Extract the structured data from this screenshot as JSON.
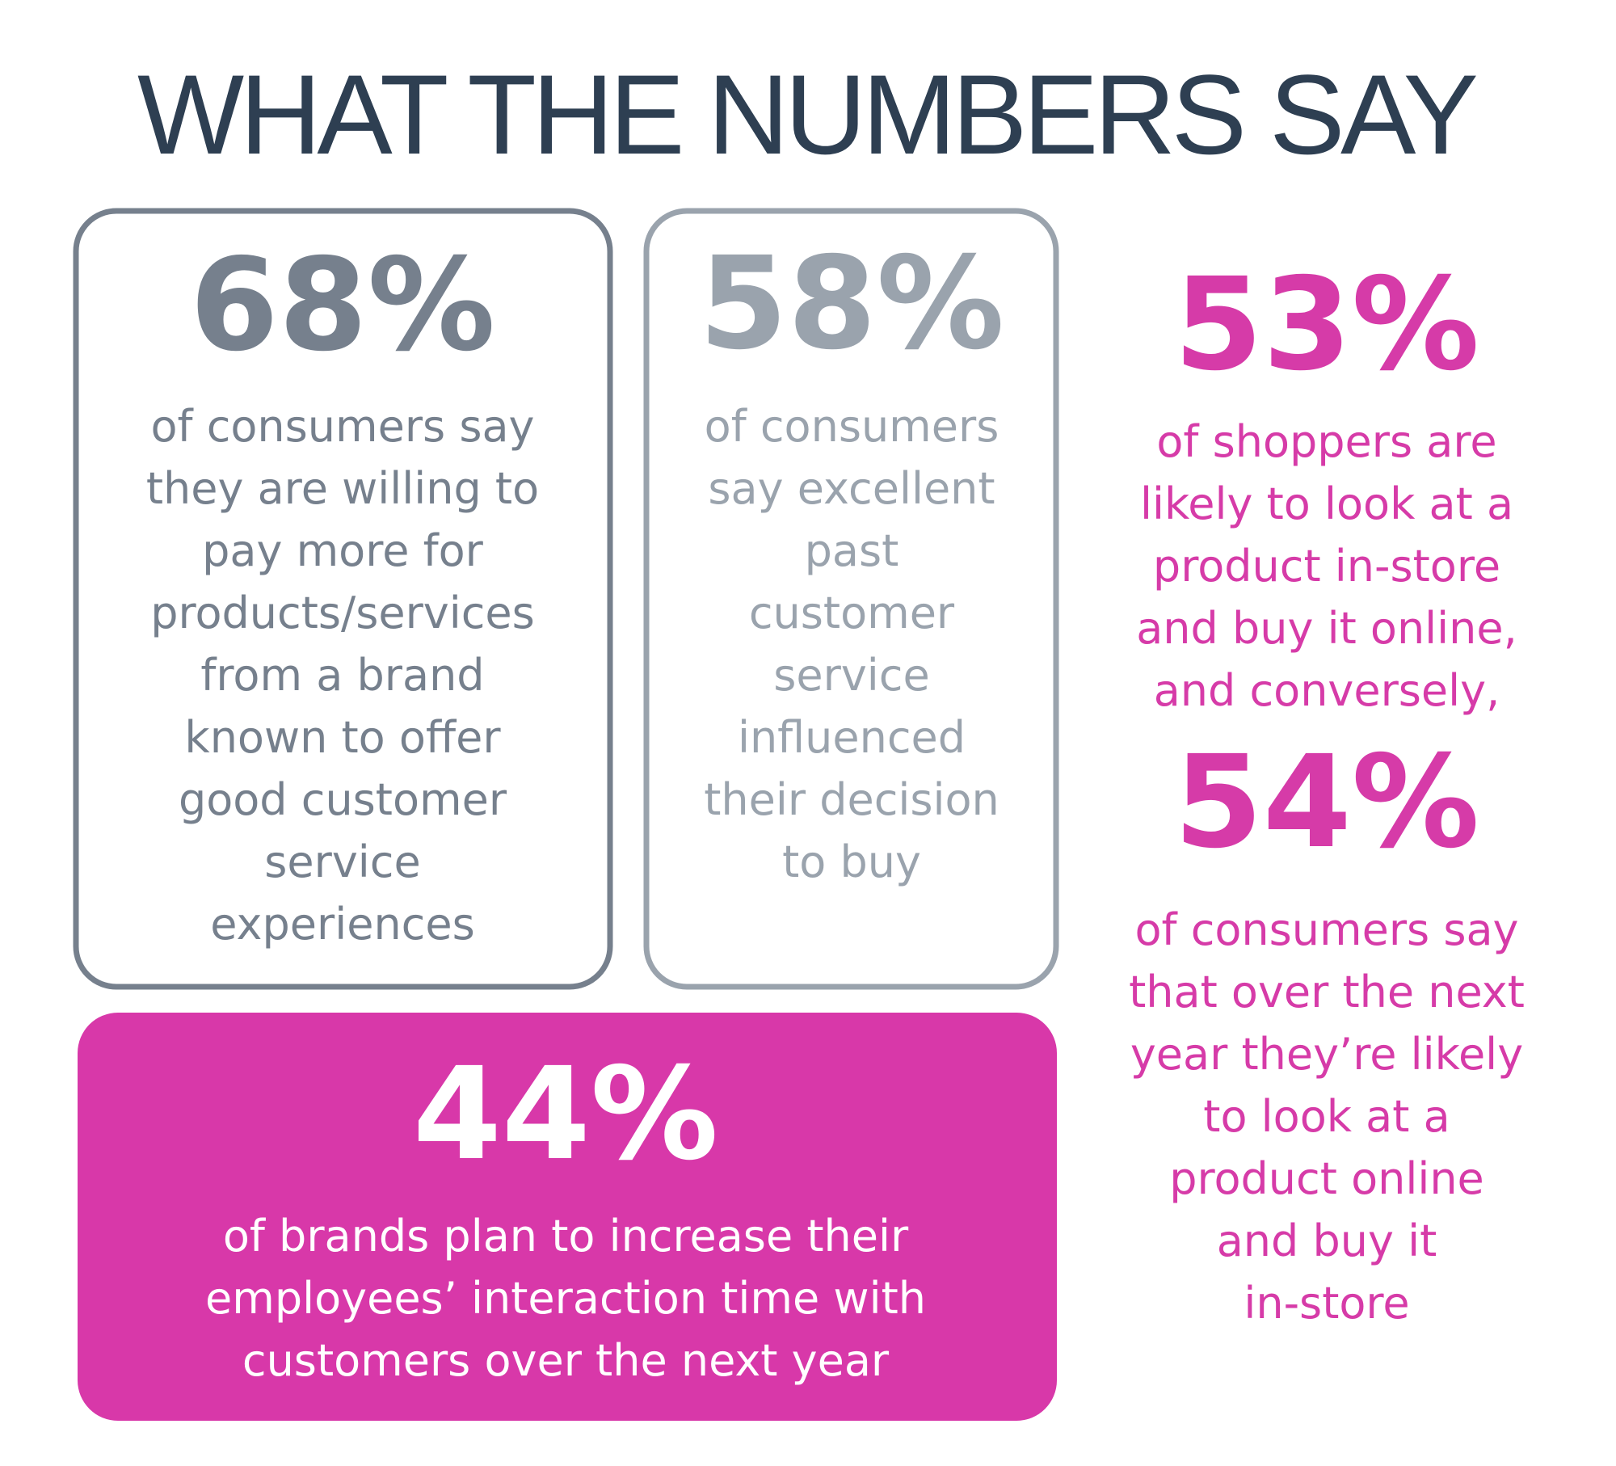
{
  "header": {
    "title": "WHAT THE NUMBERS SAY"
  },
  "stats": [
    {
      "value": "68%",
      "lines": [
        "of consumers say",
        "they are willing to",
        "pay more for",
        "products/services",
        "from a brand",
        "known to offer",
        "good customer",
        "service",
        "experiences"
      ]
    },
    {
      "value": "58%",
      "lines": [
        "of consumers",
        "say excellent",
        "past",
        "customer",
        "service",
        "influenced",
        "their decision",
        "to buy"
      ]
    },
    {
      "value": "53%",
      "lines": [
        "of shoppers are",
        "likely to look at a",
        "product in-store",
        "and buy it online,",
        "and conversely,"
      ]
    },
    {
      "value": "54%",
      "lines": [
        "of consumers say",
        "that over the next",
        "year they’re likely",
        "to look at a",
        "product online",
        "and buy it",
        "in-store"
      ]
    },
    {
      "value": "44%",
      "lines": [
        "of brands plan to increase their",
        "employees’ interaction time with",
        "customers over the next year"
      ]
    }
  ]
}
